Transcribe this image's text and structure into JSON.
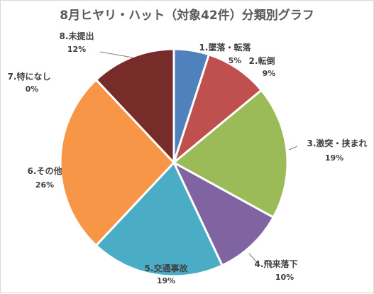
{
  "chart_data": {
    "type": "pie",
    "title": "8月ヒヤリ・ハット（対象42件）分類別グラフ",
    "slices": [
      {
        "label": "1.墜落・転落",
        "percent_label": "5%",
        "value": 5,
        "color": "#4f81bd"
      },
      {
        "label": "2.転倒",
        "percent_label": "9%",
        "value": 9,
        "color": "#c0504d"
      },
      {
        "label": "3.激突・挟まれ",
        "percent_label": "19%",
        "value": 19,
        "color": "#9bbb59"
      },
      {
        "label": "4.飛来落下",
        "percent_label": "10%",
        "value": 10,
        "color": "#8064a2"
      },
      {
        "label": "5.交通事故",
        "percent_label": "19%",
        "value": 19,
        "color": "#4bacc6"
      },
      {
        "label": "6.その他",
        "percent_label": "26%",
        "value": 26,
        "color": "#f79646"
      },
      {
        "label": "7.特になし",
        "percent_label": "0%",
        "value": 0,
        "color": "#a5a5a5"
      },
      {
        "label": "8.未提出",
        "percent_label": "12%",
        "value": 12,
        "color": "#772c2a"
      }
    ]
  }
}
